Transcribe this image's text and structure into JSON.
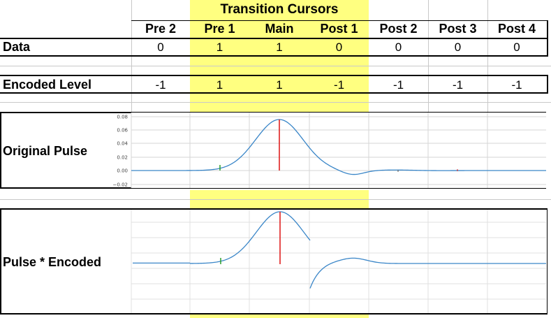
{
  "banner": "Transition Cursors",
  "columns": [
    "Pre 2",
    "Pre 1",
    "Main",
    "Post 1",
    "Post 2",
    "Post 3",
    "Post 4"
  ],
  "rows": {
    "data": {
      "label": "Data",
      "values": [
        "0",
        "1",
        "1",
        "0",
        "0",
        "0",
        "0"
      ]
    },
    "encoded": {
      "label": "Encoded Level",
      "values": [
        "-1",
        "1",
        "1",
        "-1",
        "-1",
        "-1",
        "-1"
      ]
    }
  },
  "charts": {
    "original": {
      "label": "Original Pulse",
      "y_ticks": [
        "0.08",
        "0.06",
        "0.04",
        "0.02",
        "0.00",
        "−0.02"
      ]
    },
    "encoded": {
      "label": "Pulse * Encoded"
    }
  },
  "chart_data": [
    {
      "type": "line",
      "title": "",
      "ylim": [
        -0.02,
        0.08
      ],
      "y_ticks": [
        0.08,
        0.06,
        0.04,
        0.02,
        0.0,
        -0.02
      ],
      "cursor_samples": {
        "Pre 1": 0.007,
        "Main": 0.074,
        "Post 1": 0.0,
        "Post 2": 0.0,
        "Post 3": 0.0,
        "Post 4": 0.0
      },
      "colors": {
        "curve": "#3a86c8",
        "main_cursor": "#e02020",
        "pre1_cursor": "#2a9d2a"
      }
    },
    {
      "type": "line",
      "title": "",
      "note_colors": {
        "curve": "#3a86c8",
        "main_cursor": "#e02020",
        "pre1_cursor": "#2a9d2a"
      }
    }
  ],
  "colors": {
    "highlight": "#ffff80",
    "grid": "#c8c8c8",
    "curve": "#3a86c8",
    "main_marker": "#e02020",
    "pre_marker": "#2a9d2a"
  }
}
